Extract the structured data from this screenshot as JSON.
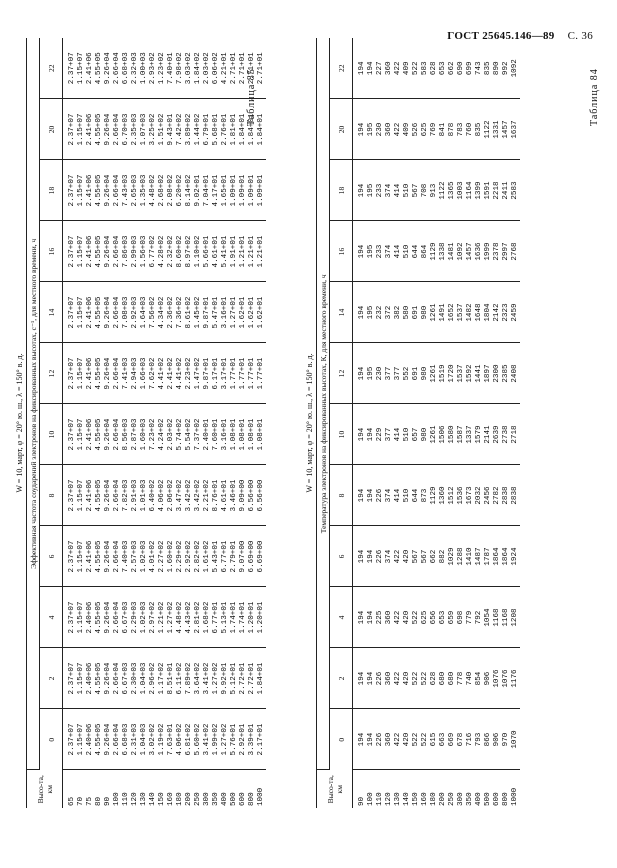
{
  "header": {
    "standard": "ГОСТ 25645.146—89",
    "page": "С. 36"
  },
  "table84": {
    "caption": "Таблица 84",
    "subtitle": "W = 10, март, φ = 20° ю. ш., λ = 150° в. д.",
    "header_title": "Температура электронов на фиксированных высотах, К, для местного времени, ч",
    "height_header": "Высо-та, км",
    "hours": [
      "0",
      "2",
      "4",
      "6",
      "8",
      "10",
      "12",
      "14",
      "16",
      "18",
      "20",
      "22"
    ],
    "rows": [
      [
        "90",
        "194",
        "194",
        "194",
        "194",
        "194",
        "194",
        "194",
        "194",
        "194",
        "194",
        "194",
        "194"
      ],
      [
        "100",
        "194",
        "194",
        "194",
        "194",
        "194",
        "194",
        "195",
        "195",
        "195",
        "195",
        "195",
        "194"
      ],
      [
        "110",
        "226",
        "226",
        "225",
        "226",
        "226",
        "229",
        "230",
        "232",
        "233",
        "233",
        "230",
        "227"
      ],
      [
        "120",
        "360",
        "360",
        "360",
        "374",
        "374",
        "377",
        "377",
        "372",
        "374",
        "374",
        "360",
        "360"
      ],
      [
        "130",
        "422",
        "422",
        "422",
        "422",
        "414",
        "414",
        "377",
        "382",
        "414",
        "414",
        "422",
        "422"
      ],
      [
        "140",
        "420",
        "420",
        "420",
        "420",
        "510",
        "510",
        "552",
        "580",
        "510",
        "510",
        "409",
        "409"
      ],
      [
        "150",
        "522",
        "522",
        "522",
        "567",
        "644",
        "657",
        "691",
        "691",
        "644",
        "567",
        "526",
        "522"
      ],
      [
        "160",
        "522",
        "522",
        "625",
        "567",
        "873",
        "980",
        "980",
        "980",
        "864",
        "708",
        "625",
        "583"
      ],
      [
        "180",
        "615",
        "628",
        "656",
        "662",
        "1129",
        "1261",
        "1261",
        "1261",
        "1129",
        "913",
        "769",
        "628"
      ],
      [
        "200",
        "663",
        "680",
        "653",
        "882",
        "1360",
        "1506",
        "1519",
        "1491",
        "1338",
        "1122",
        "841",
        "653"
      ],
      [
        "250",
        "669",
        "680",
        "659",
        "1029",
        "1512",
        "1580",
        "1720",
        "1652",
        "1481",
        "1365",
        "878",
        "662"
      ],
      [
        "300",
        "678",
        "778",
        "698",
        "1288",
        "1536",
        "1587",
        "1537",
        "1537",
        "1092",
        "1003",
        "783",
        "690"
      ],
      [
        "350",
        "716",
        "740",
        "779",
        "1410",
        "1673",
        "1337",
        "1592",
        "1482",
        "1457",
        "1164",
        "760",
        "699"
      ],
      [
        "400",
        "793",
        "854",
        "792",
        "1487",
        "2032",
        "1579",
        "1441",
        "1648",
        "1636",
        "1399",
        "835",
        "743"
      ],
      [
        "500",
        "866",
        "906",
        "1054",
        "1787",
        "2456",
        "2141",
        "1897",
        "1804",
        "1999",
        "1591",
        "1122",
        "835"
      ],
      [
        "600",
        "906",
        "1076",
        "1168",
        "1864",
        "2782",
        "2639",
        "2300",
        "2142",
        "2378",
        "2218",
        "1331",
        "890"
      ],
      [
        "800",
        "970",
        "1076",
        "1168",
        "1864",
        "2838",
        "2738",
        "2385",
        "2323",
        "2997",
        "2411",
        "1457",
        "992"
      ],
      [
        "1000",
        "1070",
        "1176",
        "1208",
        "1924",
        "2838",
        "2718",
        "2408",
        "2459",
        "2768",
        "2583",
        "1637",
        "1092"
      ]
    ]
  },
  "table85": {
    "caption": "Таблица 85",
    "subtitle": "W = 10, март, φ = 20° ю. ш., λ = 150° в. д.",
    "header_title": "Эффективная частота соударений электронов на фиксированных высотах, с⁻¹, для местного времени, ч",
    "height_header": "Высо-та, км",
    "hours": [
      "0",
      "2",
      "4",
      "6",
      "8",
      "10",
      "12",
      "14",
      "16",
      "18",
      "20",
      "22"
    ],
    "rows": [
      [
        "65",
        "2.37+07",
        "2.37+07",
        "2.37+07",
        "2.37+07",
        "2.37+07",
        "2.37+07",
        "2.37+07",
        "2.37+07",
        "2.37+07",
        "2.37+07",
        "2.37+07",
        "2.37+07"
      ],
      [
        "70",
        "1.15+07",
        "1.15+07",
        "1.15+07",
        "1.15+07",
        "1.15+07",
        "1.15+07",
        "1.15+07",
        "1.15+07",
        "1.15+07",
        "1.15+07",
        "1.15+07",
        "1.15+07"
      ],
      [
        "75",
        "2.40+06",
        "2.40+06",
        "2.40+06",
        "2.41+06",
        "2.41+06",
        "2.41+06",
        "2.41+06",
        "2.41+06",
        "2.41+06",
        "2.41+06",
        "2.41+06",
        "2.41+06"
      ],
      [
        "80",
        "4.55+05",
        "4.55+05",
        "4.55+05",
        "4.55+05",
        "4.55+05",
        "4.55+05",
        "4.55+05",
        "4.55+05",
        "4.55+05",
        "4.55+05",
        "4.55+05",
        "4.55+05"
      ],
      [
        "90",
        "9.26+04",
        "9.26+04",
        "9.26+04",
        "9.26+04",
        "9.26+04",
        "9.26+04",
        "9.26+04",
        "9.26+04",
        "9.26+04",
        "9.26+04",
        "9.26+04",
        "9.26+04"
      ],
      [
        "100",
        "2.66+04",
        "2.66+04",
        "2.66+04",
        "2.66+04",
        "2.66+04",
        "2.66+04",
        "2.66+04",
        "2.66+04",
        "2.66+04",
        "2.66+04",
        "2.66+04",
        "2.66+04"
      ],
      [
        "110",
        "6.68+03",
        "6.67+03",
        "6.67+03",
        "7.40+03",
        "7.82+03",
        "8.56+03",
        "7.41+03",
        "7.08+03",
        "7.86+03",
        "7.43+03",
        "6.70+03",
        "6.68+03"
      ],
      [
        "120",
        "2.31+03",
        "2.30+03",
        "2.29+03",
        "2.57+03",
        "2.91+03",
        "2.87+03",
        "2.94+03",
        "2.92+03",
        "2.99+03",
        "2.65+03",
        "2.35+03",
        "2.32+03"
      ],
      [
        "130",
        "1.04+03",
        "1.04+03",
        "1.02+03",
        "1.02+03",
        "1.01+03",
        "1.60+03",
        "1.66+03",
        "1.64+03",
        "1.56+03",
        "1.35+03",
        "1.07+03",
        "1.00+03"
      ],
      [
        "140",
        "3.02+02",
        "2.96+02",
        "2.97+02",
        "4.01+02",
        "6.40+02",
        "7.23+02",
        "7.62+02",
        "7.56+02",
        "6.77+02",
        "4.48+02",
        "3.25+02",
        "2.93+02"
      ],
      [
        "150",
        "1.19+02",
        "1.17+02",
        "1.21+02",
        "2.27+02",
        "4.06+02",
        "4.24+02",
        "4.41+02",
        "4.34+02",
        "4.28+02",
        "2.68+02",
        "1.51+02",
        "1.23+02"
      ],
      [
        "160",
        "7.63+01",
        "8.51+01",
        "1.27+02",
        "1.60+02",
        "2.06+02",
        "2.03+02",
        "2.41+02",
        "2.36+02",
        "2.32+02",
        "2.08+02",
        "9.43+01",
        "7.40+01"
      ],
      [
        "180",
        "4.06+02",
        "6.11+02",
        "4.48+02",
        "2.29+02",
        "3.47+02",
        "5.74+02",
        "4.41+02",
        "7.36+02",
        "8.60+02",
        "6.20+02",
        "7.42+02",
        "7.98+02"
      ],
      [
        "200",
        "6.81+02",
        "7.89+02",
        "4.43+02",
        "2.92+02",
        "3.42+02",
        "5.54+02",
        "2.23+02",
        "8.61+02",
        "8.97+02",
        "8.14+02",
        "3.89+02",
        "3.03+02"
      ],
      [
        "250",
        "5.60+02",
        "3.64+02",
        "2.81+02",
        "2.82+02",
        "3.42+02",
        "7.37+02",
        "1.47+02",
        "1.45+02",
        "1.10+02",
        "9.02+01",
        "1.44+02",
        "1.84+02"
      ],
      [
        "300",
        "3.41+02",
        "3.41+02",
        "1.68+02",
        "1.61+02",
        "2.21+02",
        "2.40+01",
        "9.87+01",
        "9.87+01",
        "5.66+01",
        "7.04+01",
        "6.79+01",
        "2.03+02"
      ],
      [
        "350",
        "1.99+02",
        "1.27+02",
        "6.77+01",
        "5.43+01",
        "8.76+01",
        "7.60+01",
        "6.17+01",
        "5.47+01",
        "4.61+01",
        "4.17+01",
        "5.68+01",
        "6.06+02"
      ],
      [
        "400",
        "1.27+02",
        "9.92+01",
        "5.13+01",
        "6.77+01",
        "4.61+01",
        "3.16+01",
        "3.17+01",
        "3.16+01",
        "5.41+01",
        "1.65+01",
        "2.76+01",
        "4.21+01"
      ],
      [
        "500",
        "5.76+01",
        "5.12+01",
        "1.74+01",
        "2.79+01",
        "3.46+01",
        "1.08+01",
        "1.77+01",
        "1.27+01",
        "1.91+01",
        "1.09+01",
        "1.81+01",
        "2.71+01"
      ],
      [
        "600",
        "2.92+01",
        "2.72+01",
        "1.74+01",
        "9.07+00",
        "9.09+00",
        "1.08+01",
        "1.77+01",
        "1.62+01",
        "1.21+01",
        "1.09+01",
        "1.84+01",
        "2.71+01"
      ],
      [
        "800",
        "3.39+01",
        "2.72+01",
        "1.20+01",
        "6.69+00",
        "6.56+00",
        "1.08+01",
        "1.77+01",
        "1.62+01",
        "1.21+01",
        "1.09+01",
        "1.84+01",
        "2.71+01"
      ],
      [
        "1000",
        "2.17+01",
        "1.84+01",
        "1.20+01",
        "6.69+00",
        "6.56+00",
        "1.08+01",
        "1.77+01",
        "1.62+01",
        "1.21+01",
        "1.09+01",
        "1.84+01",
        "2.71+01"
      ]
    ]
  }
}
